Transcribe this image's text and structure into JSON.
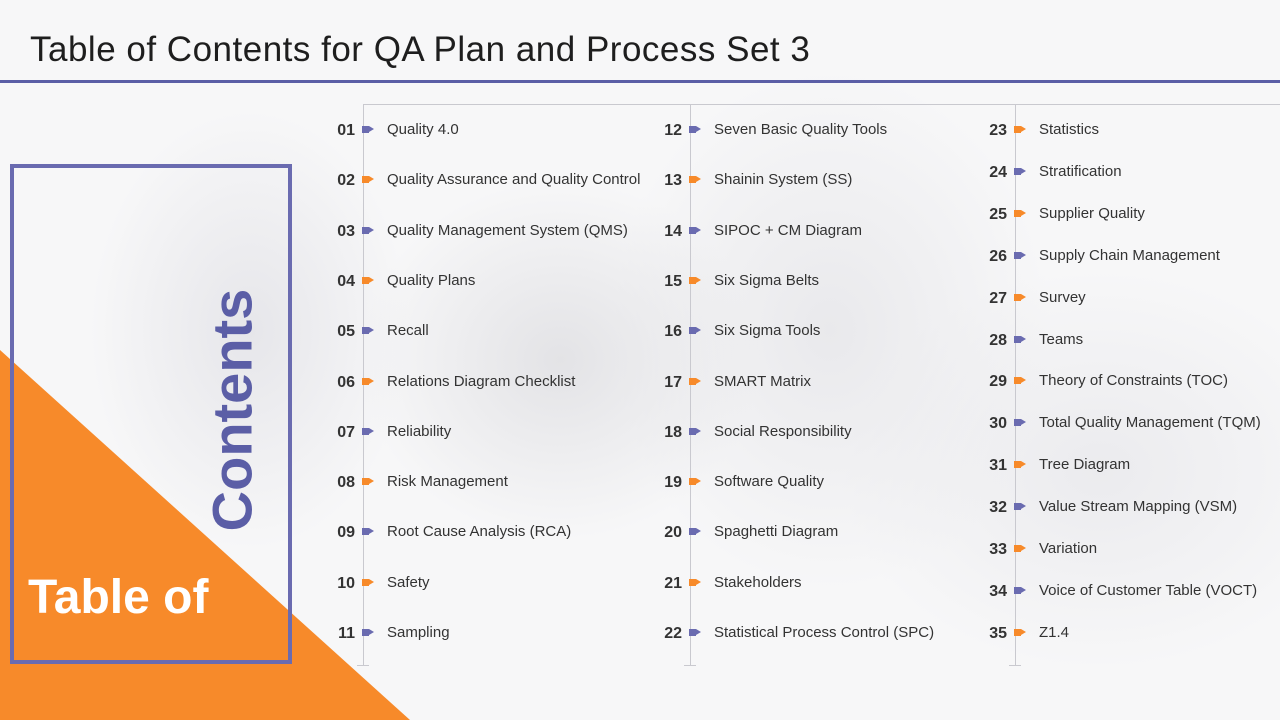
{
  "title": "Table of Contents for QA Plan and Process Set 3",
  "side": {
    "contents_word": "Contents",
    "table_of_word": "Table of"
  },
  "colors": {
    "purple": "#5b5ea6",
    "orange": "#f78a2a"
  },
  "columns": [
    {
      "items": [
        {
          "num": "01",
          "label": "Quality 4.0",
          "color": "blue"
        },
        {
          "num": "02",
          "label": "Quality Assurance and Quality Control",
          "color": "orange"
        },
        {
          "num": "03",
          "label": "Quality Management System (QMS)",
          "color": "blue"
        },
        {
          "num": "04",
          "label": "Quality Plans",
          "color": "orange"
        },
        {
          "num": "05",
          "label": "Recall",
          "color": "blue"
        },
        {
          "num": "06",
          "label": "Relations Diagram Checklist",
          "color": "orange"
        },
        {
          "num": "07",
          "label": "Reliability",
          "color": "blue"
        },
        {
          "num": "08",
          "label": "Risk Management",
          "color": "orange"
        },
        {
          "num": "09",
          "label": "Root Cause Analysis (RCA)",
          "color": "blue"
        },
        {
          "num": "10",
          "label": "Safety",
          "color": "orange"
        },
        {
          "num": "11",
          "label": "Sampling",
          "color": "blue"
        }
      ]
    },
    {
      "items": [
        {
          "num": "12",
          "label": "Seven Basic Quality Tools",
          "color": "blue"
        },
        {
          "num": "13",
          "label": "Shainin System (SS)",
          "color": "orange"
        },
        {
          "num": "14",
          "label": "SIPOC + CM Diagram",
          "color": "blue"
        },
        {
          "num": "15",
          "label": "Six Sigma Belts",
          "color": "orange"
        },
        {
          "num": "16",
          "label": "Six Sigma Tools",
          "color": "blue"
        },
        {
          "num": "17",
          "label": "SMART Matrix",
          "color": "orange"
        },
        {
          "num": "18",
          "label": "Social Responsibility",
          "color": "blue"
        },
        {
          "num": "19",
          "label": "Software Quality",
          "color": "orange"
        },
        {
          "num": "20",
          "label": "Spaghetti Diagram",
          "color": "blue"
        },
        {
          "num": "21",
          "label": "Stakeholders",
          "color": "orange"
        },
        {
          "num": "22",
          "label": "Statistical Process Control (SPC)",
          "color": "blue"
        }
      ]
    },
    {
      "items": [
        {
          "num": "23",
          "label": "Statistics",
          "color": "orange"
        },
        {
          "num": "24",
          "label": "Stratification",
          "color": "blue"
        },
        {
          "num": "25",
          "label": "Supplier Quality",
          "color": "orange"
        },
        {
          "num": "26",
          "label": "Supply Chain Management",
          "color": "blue"
        },
        {
          "num": "27",
          "label": "Survey",
          "color": "orange"
        },
        {
          "num": "28",
          "label": "Teams",
          "color": "blue"
        },
        {
          "num": "29",
          "label": "Theory of Constraints (TOC)",
          "color": "orange"
        },
        {
          "num": "30",
          "label": "Total Quality Management (TQM)",
          "color": "blue"
        },
        {
          "num": "31",
          "label": "Tree Diagram",
          "color": "orange"
        },
        {
          "num": "32",
          "label": "Value Stream Mapping (VSM)",
          "color": "blue"
        },
        {
          "num": "33",
          "label": "Variation",
          "color": "orange"
        },
        {
          "num": "34",
          "label": "Voice of Customer Table (VOCT)",
          "color": "blue"
        },
        {
          "num": "35",
          "label": "Z1.4",
          "color": "orange"
        }
      ]
    }
  ]
}
